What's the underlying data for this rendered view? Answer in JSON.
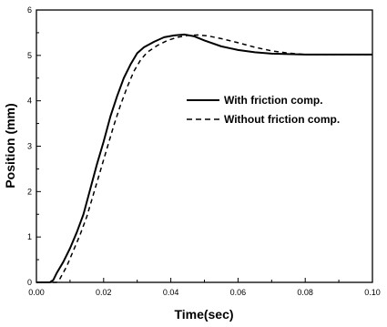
{
  "chart_data": {
    "type": "line",
    "xlabel": "Time(sec)",
    "ylabel": "Position (mm)",
    "xlim": [
      0.0,
      0.1
    ],
    "ylim": [
      0,
      6
    ],
    "x_ticks": [
      0.0,
      0.02,
      0.04,
      0.06,
      0.08,
      0.1
    ],
    "x_tick_labels": [
      "0.00",
      "0.02",
      "0.04",
      "0.06",
      "0.08",
      "0.10"
    ],
    "y_ticks": [
      0,
      1,
      2,
      3,
      4,
      5,
      6
    ],
    "y_tick_labels": [
      "0",
      "1",
      "2",
      "3",
      "4",
      "5",
      "6"
    ],
    "grid": false,
    "legend_position": "right",
    "series": [
      {
        "name": "With friction comp.",
        "style": "solid",
        "color": "#000000",
        "points": [
          [
            0.0,
            0.0
          ],
          [
            0.004,
            0.0
          ],
          [
            0.005,
            0.05
          ],
          [
            0.006,
            0.2
          ],
          [
            0.008,
            0.45
          ],
          [
            0.01,
            0.75
          ],
          [
            0.012,
            1.1
          ],
          [
            0.014,
            1.5
          ],
          [
            0.016,
            2.05
          ],
          [
            0.018,
            2.6
          ],
          [
            0.02,
            3.1
          ],
          [
            0.022,
            3.65
          ],
          [
            0.024,
            4.1
          ],
          [
            0.026,
            4.5
          ],
          [
            0.028,
            4.8
          ],
          [
            0.03,
            5.05
          ],
          [
            0.032,
            5.18
          ],
          [
            0.035,
            5.3
          ],
          [
            0.038,
            5.4
          ],
          [
            0.041,
            5.44
          ],
          [
            0.044,
            5.46
          ],
          [
            0.047,
            5.42
          ],
          [
            0.05,
            5.33
          ],
          [
            0.055,
            5.2
          ],
          [
            0.06,
            5.12
          ],
          [
            0.065,
            5.07
          ],
          [
            0.07,
            5.04
          ],
          [
            0.075,
            5.03
          ],
          [
            0.08,
            5.02
          ],
          [
            0.09,
            5.02
          ],
          [
            0.1,
            5.02
          ]
        ]
      },
      {
        "name": "Without friction comp.",
        "style": "dashed",
        "color": "#000000",
        "points": [
          [
            0.0,
            0.0
          ],
          [
            0.006,
            0.0
          ],
          [
            0.007,
            0.08
          ],
          [
            0.009,
            0.35
          ],
          [
            0.011,
            0.7
          ],
          [
            0.013,
            1.05
          ],
          [
            0.015,
            1.45
          ],
          [
            0.017,
            1.95
          ],
          [
            0.019,
            2.45
          ],
          [
            0.021,
            2.95
          ],
          [
            0.023,
            3.45
          ],
          [
            0.025,
            3.9
          ],
          [
            0.027,
            4.3
          ],
          [
            0.029,
            4.65
          ],
          [
            0.031,
            4.9
          ],
          [
            0.033,
            5.07
          ],
          [
            0.036,
            5.22
          ],
          [
            0.039,
            5.33
          ],
          [
            0.042,
            5.4
          ],
          [
            0.045,
            5.44
          ],
          [
            0.048,
            5.45
          ],
          [
            0.051,
            5.43
          ],
          [
            0.055,
            5.37
          ],
          [
            0.06,
            5.28
          ],
          [
            0.065,
            5.18
          ],
          [
            0.07,
            5.1
          ],
          [
            0.075,
            5.05
          ],
          [
            0.08,
            5.02
          ],
          [
            0.09,
            5.02
          ],
          [
            0.1,
            5.02
          ]
        ]
      }
    ]
  }
}
